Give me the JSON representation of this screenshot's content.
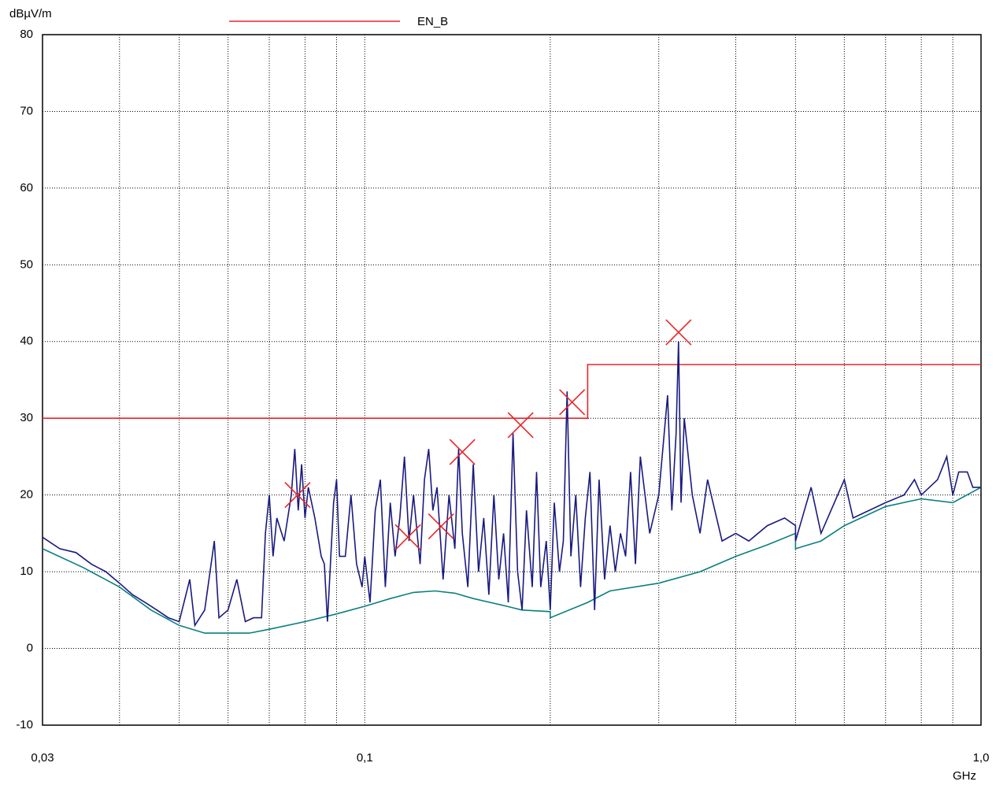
{
  "chart_data": {
    "type": "line",
    "y_label": "dBµV/m",
    "x_label": "GHz",
    "log_x": true,
    "grid": true,
    "xlim": [
      0.03,
      1.0
    ],
    "ylim": [
      -10,
      80
    ],
    "xticks": [
      {
        "value": 0.03,
        "label": "0,03"
      },
      {
        "value": 0.1,
        "label": "0,1"
      },
      {
        "value": 1.0,
        "label": "1,0"
      }
    ],
    "xgrid": [
      0.04,
      0.05,
      0.06,
      0.07,
      0.08,
      0.09,
      0.2,
      0.3,
      0.4,
      0.5,
      0.6,
      0.7,
      0.8,
      0.9
    ],
    "yticks": [
      -10,
      0,
      10,
      20,
      30,
      40,
      50,
      60,
      70,
      80
    ],
    "series": [
      {
        "name": "EN_B",
        "color": "#e8262a",
        "style": "line",
        "x": [
          0.03,
          0.23,
          0.23,
          1.0
        ],
        "values": [
          30,
          30,
          37,
          37
        ]
      },
      {
        "color": "#0a7f7f",
        "style": "line",
        "x": [
          0.03,
          0.035,
          0.04,
          0.045,
          0.05,
          0.055,
          0.06,
          0.065,
          0.07,
          0.08,
          0.09,
          0.1,
          0.11,
          0.12,
          0.13,
          0.14,
          0.15,
          0.17,
          0.18,
          0.2,
          0.2,
          0.23,
          0.25,
          0.3,
          0.35,
          0.4,
          0.45,
          0.5,
          0.5,
          0.55,
          0.6,
          0.7,
          0.8,
          0.9,
          1.0
        ],
        "values": [
          13,
          10.5,
          8,
          5,
          3,
          2,
          2,
          2,
          2.5,
          3.5,
          4.5,
          5.5,
          6.5,
          7.3,
          7.5,
          7.2,
          6.5,
          5.5,
          5,
          4.8,
          4,
          6,
          7.5,
          8.5,
          10,
          12,
          13.5,
          15,
          13,
          14,
          16,
          18.5,
          19.5,
          19,
          21
        ]
      },
      {
        "color": "#1a1a80",
        "style": "line",
        "x": [
          0.03,
          0.032,
          0.034,
          0.036,
          0.038,
          0.04,
          0.042,
          0.044,
          0.046,
          0.048,
          0.05,
          0.052,
          0.053,
          0.055,
          0.057,
          0.058,
          0.06,
          0.062,
          0.064,
          0.066,
          0.068,
          0.069,
          0.07,
          0.071,
          0.072,
          0.074,
          0.076,
          0.077,
          0.078,
          0.079,
          0.08,
          0.081,
          0.083,
          0.085,
          0.086,
          0.087,
          0.089,
          0.09,
          0.091,
          0.093,
          0.095,
          0.097,
          0.099,
          0.1,
          0.102,
          0.104,
          0.106,
          0.108,
          0.11,
          0.112,
          0.114,
          0.116,
          0.118,
          0.12,
          0.123,
          0.125,
          0.127,
          0.129,
          0.131,
          0.134,
          0.137,
          0.14,
          0.142,
          0.144,
          0.147,
          0.15,
          0.153,
          0.156,
          0.159,
          0.162,
          0.165,
          0.168,
          0.171,
          0.174,
          0.177,
          0.18,
          0.183,
          0.187,
          0.19,
          0.193,
          0.197,
          0.2,
          0.203,
          0.207,
          0.21,
          0.213,
          0.216,
          0.22,
          0.224,
          0.228,
          0.232,
          0.236,
          0.24,
          0.245,
          0.25,
          0.255,
          0.26,
          0.265,
          0.27,
          0.275,
          0.28,
          0.29,
          0.3,
          0.31,
          0.315,
          0.32,
          0.323,
          0.326,
          0.33,
          0.34,
          0.35,
          0.36,
          0.38,
          0.4,
          0.42,
          0.45,
          0.48,
          0.5,
          0.5,
          0.53,
          0.55,
          0.6,
          0.62,
          0.7,
          0.75,
          0.78,
          0.8,
          0.85,
          0.88,
          0.9,
          0.92,
          0.95,
          0.97,
          1.0
        ],
        "values": [
          14.5,
          13,
          12.5,
          11,
          10,
          8.5,
          7,
          6,
          5,
          4,
          3.5,
          9,
          3,
          5,
          14,
          4,
          5,
          9,
          3.5,
          4,
          4,
          15,
          20,
          12,
          17,
          14,
          20,
          26,
          18,
          24,
          17,
          21,
          17,
          12,
          11,
          3.5,
          19,
          22,
          12,
          12,
          20,
          11,
          8,
          12,
          6,
          18,
          22,
          8,
          19,
          12,
          17,
          25,
          14,
          20,
          11,
          22,
          26,
          18,
          21,
          9,
          20,
          13,
          26,
          15,
          8,
          24,
          10,
          17,
          7,
          20,
          9,
          15,
          6,
          28,
          10,
          5,
          18,
          8,
          23,
          8,
          14,
          5,
          19,
          10,
          14,
          33.5,
          12,
          20,
          8,
          17,
          23,
          5,
          22,
          9,
          16,
          10,
          15,
          12,
          23,
          11,
          25,
          15,
          20,
          33,
          18,
          28,
          40,
          19,
          30,
          20,
          15,
          22,
          14,
          15,
          14,
          16,
          17,
          16,
          14,
          21,
          15,
          22,
          17,
          19,
          20,
          22,
          20,
          22,
          25,
          20,
          23,
          23,
          21,
          21
        ]
      },
      {
        "color": "#e8262a",
        "style": "x",
        "x": [
          0.0778,
          0.1175,
          0.133,
          0.144,
          0.179,
          0.217,
          0.323
        ],
        "values": [
          20.0,
          14.5,
          15.9,
          25.6,
          29.1,
          32.1,
          41.2
        ]
      }
    ]
  }
}
